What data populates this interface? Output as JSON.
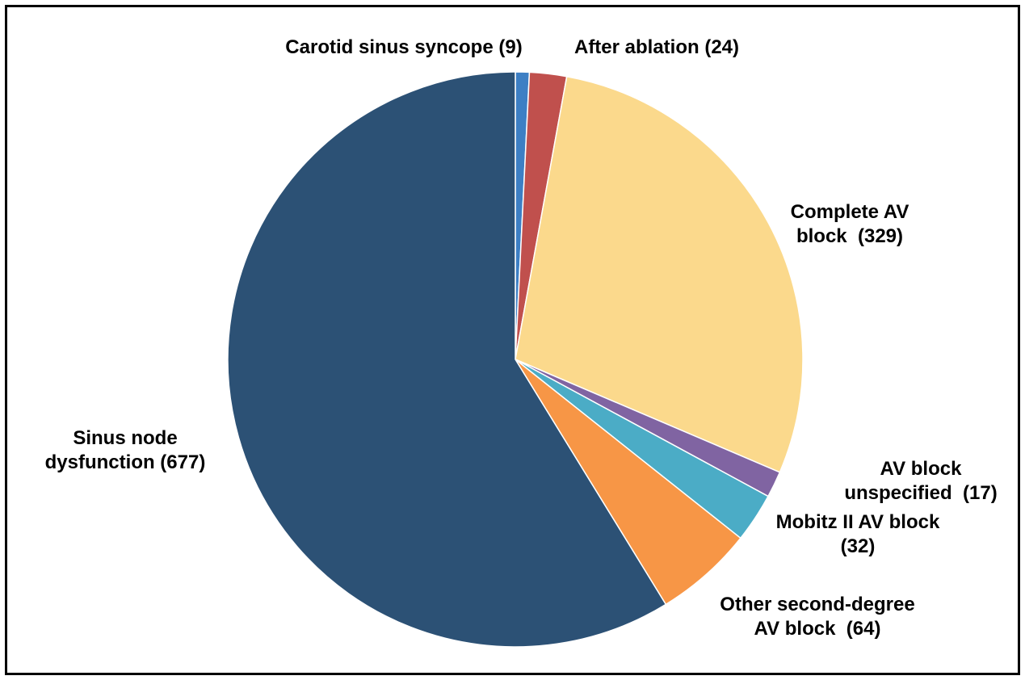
{
  "chart_data": {
    "type": "pie",
    "title": "",
    "start_angle_deg": 0,
    "direction": "clockwise",
    "slices": [
      {
        "name": "Carotid sinus syncope",
        "value": 9,
        "label_lines": [
          "Carotid sinus syncope (9)"
        ],
        "color": "#3d7fc4"
      },
      {
        "name": "After ablation",
        "value": 24,
        "label_lines": [
          "After ablation (24)"
        ],
        "color": "#c0504d"
      },
      {
        "name": "Complete AV block",
        "value": 329,
        "label_lines": [
          "Complete AV",
          "block  (329)"
        ],
        "color": "#fbd98c"
      },
      {
        "name": "AV block unspecified",
        "value": 17,
        "label_lines": [
          "AV block",
          "unspecified  (17)"
        ],
        "color": "#8064a2"
      },
      {
        "name": "Mobitz II AV block",
        "value": 32,
        "label_lines": [
          "Mobitz II AV block",
          "(32)"
        ],
        "color": "#4bacc6"
      },
      {
        "name": "Other second-degree AV block",
        "value": 64,
        "label_lines": [
          "Other second-degree",
          "AV block  (64)"
        ],
        "color": "#f79646"
      },
      {
        "name": "Sinus node dysfunction",
        "value": 677,
        "label_lines": [
          "Sinus node",
          "dysfunction (677)"
        ],
        "color": "#2c5175"
      }
    ]
  }
}
